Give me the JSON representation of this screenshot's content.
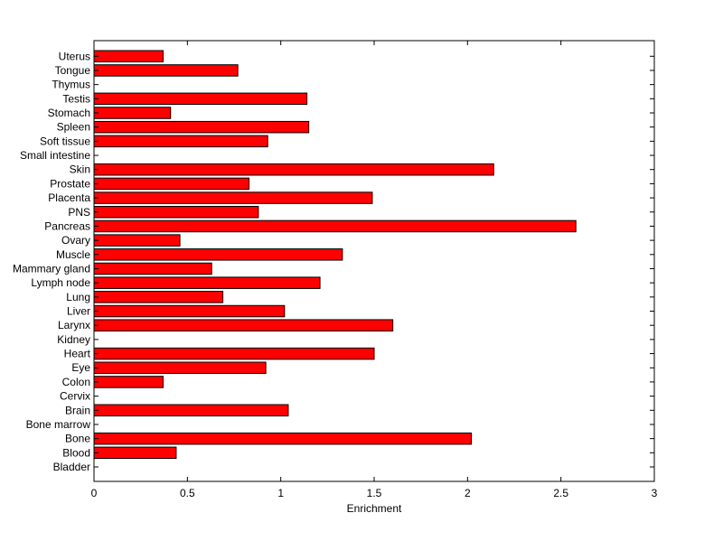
{
  "chart_data": {
    "type": "bar",
    "orientation": "horizontal",
    "xlabel": "Enrichment",
    "ylabel": "",
    "xlim": [
      0,
      3
    ],
    "xticks": [
      0,
      0.5,
      1,
      1.5,
      2,
      2.5,
      3
    ],
    "xtick_labels": [
      "0",
      "0.5",
      "1",
      "1.5",
      "2",
      "2.5",
      "3"
    ],
    "grid": false,
    "bar_color": "#ff0000",
    "edge_color": "#000000",
    "categories": [
      "Bladder",
      "Blood",
      "Bone",
      "Bone marrow",
      "Brain",
      "Cervix",
      "Colon",
      "Eye",
      "Heart",
      "Kidney",
      "Larynx",
      "Liver",
      "Lung",
      "Lymph node",
      "Mammary gland",
      "Muscle",
      "Ovary",
      "Pancreas",
      "PNS",
      "Placenta",
      "Prostate",
      "Skin",
      "Small intestine",
      "Soft tissue",
      "Spleen",
      "Stomach",
      "Testis",
      "Thymus",
      "Tongue",
      "Uterus"
    ],
    "values": [
      0,
      0.44,
      2.02,
      0,
      1.04,
      0,
      0.37,
      0.92,
      1.5,
      0,
      1.6,
      1.02,
      0.69,
      1.21,
      0.63,
      1.33,
      0.46,
      2.58,
      0.88,
      1.49,
      0.83,
      2.14,
      0,
      0.93,
      1.15,
      0.41,
      1.14,
      0,
      0.77,
      0.37
    ]
  }
}
